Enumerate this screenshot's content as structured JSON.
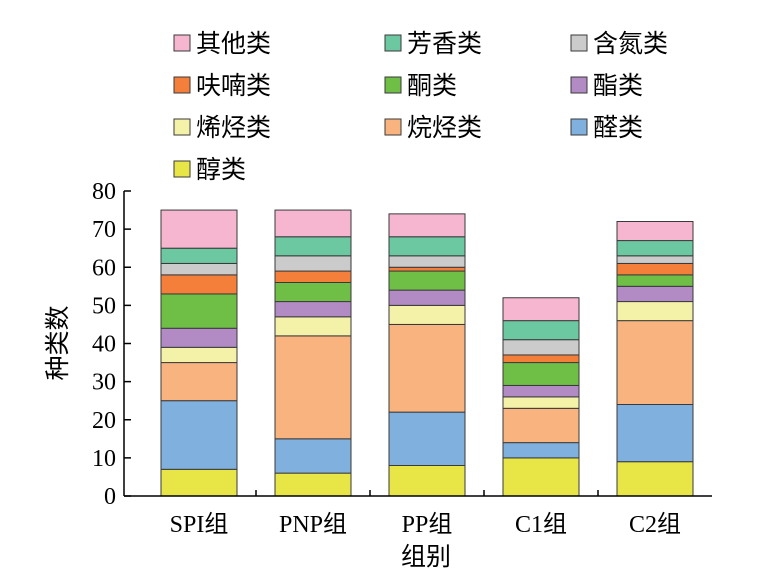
{
  "chart_data": {
    "type": "bar",
    "stacked": true,
    "xlabel": "组别",
    "ylabel": "种类数",
    "ylim": [
      0,
      80
    ],
    "yticks": [
      0,
      10,
      20,
      30,
      40,
      50,
      60,
      70,
      80
    ],
    "categories": [
      "SPI组",
      "PNP组",
      "PP组",
      "C1组",
      "C2组"
    ],
    "series": [
      {
        "name": "醇类",
        "color": "#e8e646",
        "values": [
          7,
          6,
          8,
          10,
          9
        ]
      },
      {
        "name": "醛类",
        "color": "#80b0de",
        "values": [
          18,
          9,
          14,
          4,
          15
        ]
      },
      {
        "name": "烷烃类",
        "color": "#f9b37f",
        "values": [
          10,
          27,
          23,
          9,
          22
        ]
      },
      {
        "name": "烯烃类",
        "color": "#f4f2a8",
        "values": [
          4,
          5,
          5,
          3,
          5
        ]
      },
      {
        "name": "酯类",
        "color": "#b28bc4",
        "values": [
          5,
          4,
          4,
          3,
          4
        ]
      },
      {
        "name": "酮类",
        "color": "#6fbf47",
        "values": [
          9,
          5,
          5,
          6,
          3
        ]
      },
      {
        "name": "呋喃类",
        "color": "#f47f3a",
        "values": [
          5,
          3,
          1,
          2,
          3
        ]
      },
      {
        "name": "含氮类",
        "color": "#cbcbcb",
        "values": [
          3,
          4,
          3,
          4,
          2
        ]
      },
      {
        "name": "芳香类",
        "color": "#6cc8a0",
        "values": [
          4,
          5,
          5,
          5,
          4
        ]
      },
      {
        "name": "其他类",
        "color": "#f7b6cf",
        "values": [
          10,
          7,
          6,
          6,
          5
        ]
      }
    ],
    "legend_order": [
      "其他类",
      "芳香类",
      "含氮类",
      "呋喃类",
      "酮类",
      "酯类",
      "烯烃类",
      "烷烃类",
      "醛类",
      "醇类"
    ],
    "legend_position": "top"
  }
}
